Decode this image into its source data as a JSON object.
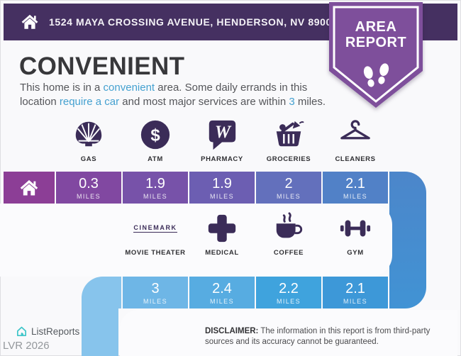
{
  "colors": {
    "header_bg": "#453061",
    "badge_fill": "#7E4F9B",
    "highlight": "#45A1D0",
    "icon_ink": "#3B2C58",
    "bar_text": "#FFFFFF",
    "connector_top": "#4C86CA",
    "connector_bottom": "#4193D4",
    "leading_blue": "#87C4EC",
    "brand_teal": "#3EC5C8"
  },
  "header": {
    "address": "1524 MAYA CROSSING AVENUE, HENDERSON, NV 89002"
  },
  "badge": {
    "line1": "AREA",
    "line2": "REPORT",
    "icon": "footprints-icon"
  },
  "main": {
    "title": "CONVENIENT",
    "description_parts": [
      {
        "text": "This home is in a ",
        "highlight": false
      },
      {
        "text": "convenient",
        "highlight": true
      },
      {
        "text": " area. Some daily errands in this\nlocation ",
        "highlight": false
      },
      {
        "text": "require a car",
        "highlight": true
      },
      {
        "text": " and most major services are within ",
        "highlight": false
      },
      {
        "text": "3",
        "highlight": true
      },
      {
        "text": " miles.",
        "highlight": false
      }
    ]
  },
  "row1": {
    "icons": [
      {
        "label": "GAS",
        "icon": "shell-gas-icon"
      },
      {
        "label": "ATM",
        "icon": "atm-dollar-icon"
      },
      {
        "label": "PHARMACY",
        "icon": "walgreens-icon"
      },
      {
        "label": "GROCERIES",
        "icon": "grocery-basket-icon"
      },
      {
        "label": "CLEANERS",
        "icon": "hanger-icon"
      }
    ],
    "bar_segments": [
      {
        "type": "home",
        "icon": "home-icon",
        "color": "#8C3E96"
      },
      {
        "value": "0.3",
        "unit": "MILES",
        "color": "#8148A1"
      },
      {
        "value": "1.9",
        "unit": "MILES",
        "color": "#7752A9"
      },
      {
        "value": "1.9",
        "unit": "MILES",
        "color": "#6C5EB2"
      },
      {
        "value": "2",
        "unit": "MILES",
        "color": "#6370BC"
      },
      {
        "value": "2.1",
        "unit": "MILES",
        "color": "#5181C7"
      }
    ]
  },
  "row2": {
    "icons": [
      {
        "label": "MOVIE THEATER",
        "icon": "cinemark-logo",
        "logo_text": "CINEMARK"
      },
      {
        "label": "MEDICAL",
        "icon": "medical-cross-icon"
      },
      {
        "label": "COFFEE",
        "icon": "coffee-cup-icon"
      },
      {
        "label": "GYM",
        "icon": "dumbbell-icon"
      }
    ],
    "bar_segments": [
      {
        "value": "3",
        "unit": "MILES",
        "color": "#6EB6E6"
      },
      {
        "value": "2.4",
        "unit": "MILES",
        "color": "#57ACE1"
      },
      {
        "value": "2.2",
        "unit": "MILES",
        "color": "#3FA3DD"
      },
      {
        "value": "2.1",
        "unit": "MILES",
        "color": "#3D98D8"
      }
    ]
  },
  "footer": {
    "brand": "ListReports",
    "brand_icon": "listreports-house-icon",
    "code": "LVR 2026",
    "disclaimer_label": "DISCLAIMER:",
    "disclaimer_text": "The information in this report is from third-party sources and its accuracy cannot be guaranteed."
  }
}
